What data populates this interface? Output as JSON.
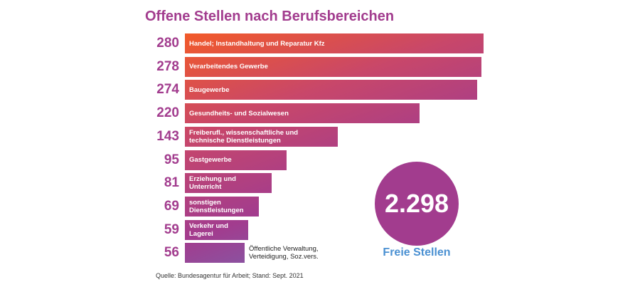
{
  "chart_data": {
    "type": "bar",
    "orientation": "horizontal",
    "title": "Offene Stellen nach Berufsbereichen",
    "categories": [
      "Handel; Instandhaltung und Reparatur Kfz",
      "Verarbeitendes Gewerbe",
      "Baugewerbe",
      "Gesundheits- und Sozialwesen",
      "Freiberufl., wissenschaftliche und technische Dienstleistungen",
      "Gastgewerbe",
      "Erziehung und Unterricht",
      "sonstigen Dienstleistungen",
      "Verkehr und Lagerei",
      "Öffentliche Verwaltung, Verteidigung, Soz.vers."
    ],
    "values": [
      280,
      278,
      274,
      220,
      143,
      95,
      81,
      69,
      59,
      56
    ],
    "value_labels": [
      "280",
      "278",
      "274",
      "220",
      "143",
      "95",
      "81",
      "69",
      "59",
      "56"
    ],
    "xlim": [
      0,
      280
    ],
    "grid": false,
    "colors": {
      "gradient_start": "#f25a29",
      "gradient_mid": "#a23c8e",
      "gradient_end": "#5a80c6",
      "number": "#a23c8e"
    }
  },
  "total": {
    "value": "2.298",
    "label": "Freie Stellen",
    "circle_color": "#a23c8e",
    "label_color": "#4a90d2"
  },
  "source": "Quelle: Bundesagentur für Arbeit; Stand: Sept. 2021"
}
